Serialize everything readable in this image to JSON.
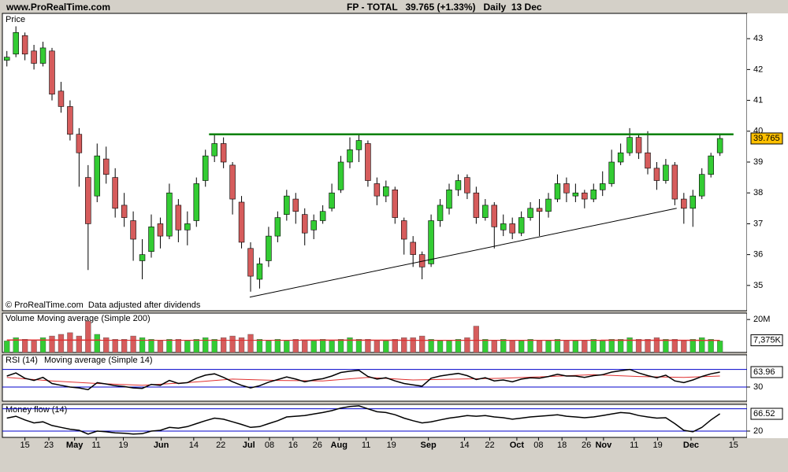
{
  "site": "www.ProRealTime.com",
  "chart_data": {
    "type": "candlestick",
    "title": "FP - TOTAL   39.765 (+1.33%)   Daily  13 Dec",
    "y_label": "Price",
    "note": "© ProRealTime.com  Data adjusted after dividends",
    "up_color": "#33cc33",
    "down_color": "#d65c5c",
    "xlim": [
      -0.5,
      82
    ],
    "xticks": [
      {
        "value": 2,
        "label": "15"
      },
      {
        "value": 4.65,
        "label": "23"
      },
      {
        "value": 7.5,
        "label": "May"
      },
      {
        "value": 9.9,
        "label": "11"
      },
      {
        "value": 12.9,
        "label": "19"
      },
      {
        "value": 17.1,
        "label": "Jun"
      },
      {
        "value": 20.7,
        "label": "14"
      },
      {
        "value": 23.7,
        "label": "22"
      },
      {
        "value": 26.8,
        "label": "Jul"
      },
      {
        "value": 29.1,
        "label": "08"
      },
      {
        "value": 31.7,
        "label": "16"
      },
      {
        "value": 34.4,
        "label": "26"
      },
      {
        "value": 36.8,
        "label": "Aug"
      },
      {
        "value": 39.8,
        "label": "11"
      },
      {
        "value": 42.6,
        "label": "19"
      },
      {
        "value": 46.7,
        "label": "Sep"
      },
      {
        "value": 50.7,
        "label": "14"
      },
      {
        "value": 53.5,
        "label": "22"
      },
      {
        "value": 56.5,
        "label": "Oct"
      },
      {
        "value": 58.9,
        "label": "08"
      },
      {
        "value": 61.5,
        "label": "18"
      },
      {
        "value": 64.2,
        "label": "26"
      },
      {
        "value": 66.1,
        "label": "Nov"
      },
      {
        "value": 69.5,
        "label": "11"
      },
      {
        "value": 72.1,
        "label": "19"
      },
      {
        "value": 75.8,
        "label": "Dec"
      },
      {
        "value": 80.5,
        "label": "15"
      }
    ],
    "ylim": [
      34.18,
      43.82
    ],
    "yticks": [
      35,
      36,
      37,
      38,
      39,
      40,
      41,
      42,
      43
    ],
    "last_color": "#ffc000",
    "candles": [
      [
        42.3,
        42.6,
        42.1,
        42.4
      ],
      [
        42.5,
        43.4,
        42.4,
        43.2
      ],
      [
        43.1,
        43.2,
        42.3,
        42.5
      ],
      [
        42.6,
        42.8,
        42.0,
        42.2
      ],
      [
        42.2,
        42.9,
        42.1,
        42.7
      ],
      [
        42.6,
        42.7,
        41.0,
        41.2
      ],
      [
        41.3,
        41.6,
        40.6,
        40.8
      ],
      [
        40.8,
        41.0,
        39.7,
        39.9
      ],
      [
        39.9,
        40.1,
        38.2,
        39.3
      ],
      [
        38.5,
        38.9,
        35.5,
        37.0
      ],
      [
        37.9,
        39.6,
        37.7,
        39.2
      ],
      [
        39.1,
        39.5,
        38.3,
        38.6
      ],
      [
        38.5,
        38.8,
        37.2,
        37.5
      ],
      [
        37.6,
        38.0,
        36.9,
        37.2
      ],
      [
        37.1,
        37.4,
        35.8,
        36.5
      ],
      [
        35.8,
        36.5,
        35.2,
        36.0
      ],
      [
        36.1,
        37.3,
        35.9,
        36.9
      ],
      [
        37.0,
        37.2,
        36.2,
        36.6
      ],
      [
        36.6,
        38.3,
        36.5,
        38.0
      ],
      [
        37.6,
        37.8,
        36.4,
        36.8
      ],
      [
        36.8,
        37.4,
        36.3,
        37.0
      ],
      [
        37.1,
        38.5,
        36.9,
        38.3
      ],
      [
        38.4,
        39.4,
        38.2,
        39.2
      ],
      [
        39.2,
        39.9,
        39.0,
        39.6
      ],
      [
        39.6,
        39.8,
        38.8,
        39.0
      ],
      [
        38.9,
        39.0,
        37.3,
        37.8
      ],
      [
        37.7,
        37.9,
        36.2,
        36.4
      ],
      [
        36.2,
        36.4,
        34.8,
        35.3
      ],
      [
        35.2,
        35.9,
        34.9,
        35.7
      ],
      [
        35.8,
        36.9,
        35.6,
        36.6
      ],
      [
        36.6,
        37.4,
        36.4,
        37.2
      ],
      [
        37.3,
        38.1,
        37.1,
        37.9
      ],
      [
        37.8,
        38.0,
        37.0,
        37.4
      ],
      [
        37.3,
        37.5,
        36.3,
        36.7
      ],
      [
        36.8,
        37.3,
        36.5,
        37.1
      ],
      [
        37.1,
        37.6,
        37.0,
        37.4
      ],
      [
        37.5,
        38.3,
        37.4,
        38.0
      ],
      [
        38.1,
        39.2,
        38.0,
        39.0
      ],
      [
        39.0,
        39.8,
        38.8,
        39.4
      ],
      [
        39.4,
        39.9,
        39.0,
        39.7
      ],
      [
        39.6,
        39.7,
        38.2,
        38.4
      ],
      [
        38.3,
        38.5,
        37.6,
        37.9
      ],
      [
        37.9,
        38.4,
        37.7,
        38.2
      ],
      [
        38.1,
        38.2,
        37.0,
        37.2
      ],
      [
        37.1,
        37.2,
        36.0,
        36.5
      ],
      [
        36.4,
        36.6,
        35.6,
        36.0
      ],
      [
        36.0,
        36.1,
        35.2,
        35.6
      ],
      [
        35.7,
        37.3,
        35.6,
        37.1
      ],
      [
        37.1,
        37.8,
        36.9,
        37.6
      ],
      [
        37.5,
        38.3,
        37.3,
        38.1
      ],
      [
        38.1,
        38.6,
        37.9,
        38.4
      ],
      [
        38.5,
        38.6,
        37.8,
        38.0
      ],
      [
        38.0,
        38.2,
        37.0,
        37.2
      ],
      [
        37.2,
        37.8,
        37.1,
        37.6
      ],
      [
        37.6,
        37.7,
        36.2,
        36.9
      ],
      [
        36.8,
        37.3,
        36.6,
        37.0
      ],
      [
        37.0,
        37.2,
        36.5,
        36.7
      ],
      [
        36.7,
        37.4,
        36.6,
        37.2
      ],
      [
        37.2,
        37.7,
        37.1,
        37.5
      ],
      [
        37.5,
        37.8,
        36.6,
        37.4
      ],
      [
        37.4,
        38.0,
        37.2,
        37.8
      ],
      [
        37.8,
        38.6,
        37.7,
        38.3
      ],
      [
        38.3,
        38.5,
        37.7,
        38.0
      ],
      [
        37.9,
        38.3,
        37.7,
        38.0
      ],
      [
        38.0,
        38.1,
        37.5,
        37.8
      ],
      [
        37.8,
        38.3,
        37.7,
        38.1
      ],
      [
        38.1,
        38.7,
        37.9,
        38.3
      ],
      [
        38.3,
        39.4,
        38.2,
        39.0
      ],
      [
        39.0,
        39.6,
        38.9,
        39.3
      ],
      [
        39.3,
        40.1,
        39.2,
        39.8
      ],
      [
        39.8,
        39.9,
        39.1,
        39.3
      ],
      [
        39.3,
        40.0,
        38.6,
        38.8
      ],
      [
        38.8,
        39.0,
        38.1,
        38.4
      ],
      [
        38.4,
        39.1,
        38.3,
        38.9
      ],
      [
        38.9,
        39.0,
        37.6,
        37.8
      ],
      [
        37.8,
        38.0,
        37.0,
        37.5
      ],
      [
        37.5,
        38.1,
        36.9,
        37.9
      ],
      [
        37.9,
        38.8,
        37.8,
        38.6
      ],
      [
        38.6,
        39.3,
        38.5,
        39.2
      ],
      [
        39.3,
        39.9,
        39.2,
        39.765
      ]
    ],
    "lines": [
      {
        "color": "#008000",
        "x": [
          22.4,
          80.5
        ],
        "y": [
          39.9,
          39.9
        ]
      },
      {
        "color": "#000000",
        "x": [
          26.9,
          74.2
        ],
        "y": [
          34.62,
          37.5
        ]
      }
    ],
    "volume": {
      "label": "Volume",
      "ma_label": "Moving average (Simple 200)",
      "label_color": "#33aa33",
      "ma_color": "#e03030",
      "values": [
        7,
        9,
        8,
        7,
        9,
        10,
        11,
        12,
        10,
        19,
        11,
        9,
        8,
        8,
        10,
        9,
        8,
        7,
        8,
        8,
        7,
        8,
        9,
        8,
        9,
        10,
        9,
        11,
        8,
        7,
        8,
        7,
        8,
        7,
        7,
        8,
        7,
        8,
        9,
        8,
        8,
        7,
        7,
        8,
        9,
        9,
        10,
        8,
        7,
        7,
        8,
        9,
        16,
        8,
        7,
        8,
        7,
        7,
        8,
        7,
        7,
        8,
        7,
        7,
        7,
        8,
        7,
        8,
        8,
        9,
        8,
        8,
        9,
        8,
        8,
        7,
        8,
        9,
        8,
        7
      ],
      "ylim": [
        0,
        23.9
      ],
      "yticks": [
        {
          "value": 20,
          "label": "20M"
        }
      ],
      "ma": {
        "x": [
          0,
          79
        ],
        "values": [
          7.5,
          7.375
        ],
        "value_labels": [
          null,
          "7,375K"
        ]
      }
    },
    "rsi": {
      "label": "RSI (14)",
      "ma_label": "Moving average (Simple 14)",
      "line_color": "#000000",
      "ma_color": "#e03030",
      "level_color": "#0000cc",
      "values": [
        55,
        62,
        50,
        45,
        52,
        38,
        34,
        30,
        28,
        24,
        40,
        37,
        33,
        31,
        28,
        27,
        36,
        34,
        45,
        38,
        40,
        50,
        57,
        60,
        52,
        42,
        34,
        28,
        33,
        41,
        47,
        53,
        48,
        42,
        46,
        49,
        55,
        63,
        66,
        68,
        54,
        48,
        51,
        44,
        38,
        35,
        32,
        50,
        55,
        58,
        61,
        56,
        47,
        51,
        44,
        46,
        42,
        48,
        51,
        50,
        54,
        59,
        55,
        55,
        52,
        56,
        58,
        64,
        67,
        70,
        62,
        56,
        51,
        57,
        44,
        40,
        46,
        54,
        60,
        63.96
      ],
      "ma": {
        "x": [
          0,
          5,
          10,
          15,
          20,
          25,
          30,
          35,
          40,
          45,
          50,
          55,
          60,
          65,
          70,
          75,
          79
        ],
        "values": [
          52,
          44,
          38,
          34,
          40,
          48,
          45,
          44,
          52,
          46,
          48,
          50,
          54,
          58,
          54,
          52,
          55
        ]
      },
      "ylim": [
        -2.2,
        103.3
      ],
      "yticks": [
        30
      ],
      "levels": [
        70,
        30
      ]
    },
    "money_flow": {
      "label": "Money flow (14)",
      "line_color": "#000000",
      "level_color": "#0000cc",
      "values": [
        55,
        60,
        50,
        42,
        45,
        35,
        30,
        25,
        22,
        12,
        20,
        18,
        15,
        14,
        12,
        13,
        20,
        22,
        30,
        28,
        32,
        40,
        48,
        55,
        52,
        45,
        38,
        30,
        32,
        40,
        48,
        58,
        60,
        62,
        66,
        70,
        75,
        82,
        86,
        88,
        80,
        72,
        70,
        64,
        55,
        48,
        42,
        45,
        50,
        55,
        58,
        62,
        60,
        62,
        58,
        56,
        52,
        55,
        58,
        60,
        62,
        64,
        60,
        58,
        56,
        58,
        62,
        66,
        70,
        68,
        62,
        58,
        55,
        56,
        40,
        22,
        18,
        30,
        50,
        66.52
      ],
      "ylim": [
        3,
        92
      ],
      "yticks": [
        20
      ],
      "levels": [
        80,
        20
      ]
    }
  }
}
